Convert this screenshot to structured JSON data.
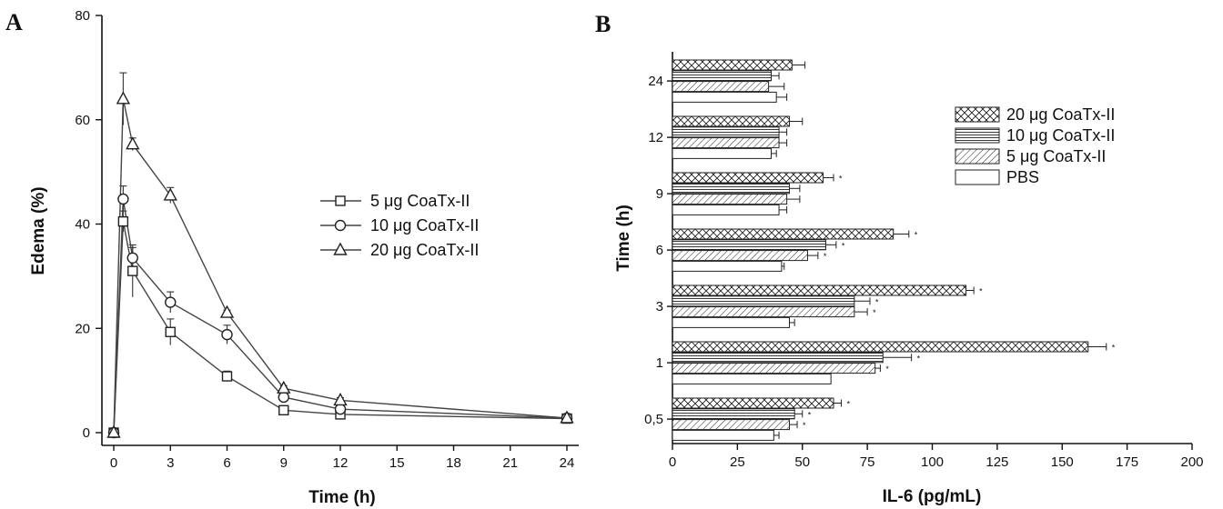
{
  "panel_a_letter": "A",
  "panel_b_letter": "B",
  "chart_data": [
    {
      "type": "line",
      "xlabel": "Time (h)",
      "ylabel": "Edema (%)",
      "x_ticks": [
        "0",
        "3",
        "6",
        "9",
        "12",
        "15",
        "18",
        "21",
        "24"
      ],
      "y_ticks": [
        "0",
        "20",
        "40",
        "60",
        "80"
      ],
      "xlim": [
        0,
        24
      ],
      "ylim": [
        0,
        80
      ],
      "legend_position": "center-right",
      "series": [
        {
          "name": "5 μg CoaTx-II",
          "marker": "square",
          "x": [
            0,
            0.5,
            1,
            3,
            6,
            9,
            12,
            24
          ],
          "y": [
            0,
            40.5,
            31,
            19.3,
            10.8,
            4.3,
            3.5,
            2.7
          ],
          "err": [
            0,
            2,
            5,
            2.5,
            1,
            0.5,
            1,
            0.8
          ]
        },
        {
          "name": "10 μg CoaTx-II",
          "marker": "circle",
          "x": [
            0,
            0.5,
            1,
            3,
            6,
            9,
            12,
            24
          ],
          "y": [
            0,
            44.8,
            33.5,
            25,
            18.8,
            6.8,
            4.5,
            2.8
          ],
          "err": [
            0,
            2.5,
            2,
            2,
            1.8,
            0.5,
            0.5,
            0.5
          ]
        },
        {
          "name": "20 μg CoaTx-II",
          "marker": "triangle",
          "x": [
            0,
            0.5,
            1,
            3,
            6,
            9,
            12,
            24
          ],
          "y": [
            0,
            64,
            55.3,
            45.5,
            23,
            8.5,
            6.2,
            2.8
          ],
          "err": [
            0,
            5,
            1.2,
            1.5,
            0.5,
            0.5,
            0.5,
            0.5
          ]
        }
      ]
    },
    {
      "type": "bar",
      "orientation": "horizontal",
      "xlabel": "IL-6 (pg/mL)",
      "ylabel": "Time (h)",
      "categories": [
        "24",
        "12",
        "9",
        "6",
        "3",
        "1",
        "0,5"
      ],
      "x_ticks": [
        "0",
        "25",
        "50",
        "75",
        "100",
        "125",
        "150",
        "175",
        "200"
      ],
      "xlim": [
        0,
        200
      ],
      "legend_position": "top-right",
      "series": [
        {
          "name": "20 μg CoaTx-II",
          "pattern": "crosshatch",
          "values": [
            46,
            45,
            58,
            85,
            113,
            160,
            62
          ],
          "err": [
            5,
            5,
            4,
            6,
            3,
            7,
            3
          ],
          "significant": [
            false,
            false,
            true,
            true,
            true,
            true,
            true
          ]
        },
        {
          "name": "10 μg CoaTx-II",
          "pattern": "horizontal",
          "values": [
            38,
            41,
            45,
            59,
            70,
            81,
            47
          ],
          "err": [
            3,
            3,
            4,
            4,
            6,
            11,
            3
          ],
          "significant": [
            false,
            false,
            false,
            true,
            true,
            true,
            true
          ]
        },
        {
          "name": "5 μg CoaTx-II",
          "pattern": "diagonal",
          "values": [
            37,
            41,
            44,
            52,
            70,
            78,
            45
          ],
          "err": [
            6,
            3,
            5,
            4,
            5,
            2,
            3
          ],
          "significant": [
            false,
            false,
            false,
            true,
            true,
            true,
            true
          ]
        },
        {
          "name": "PBS",
          "pattern": "empty",
          "values": [
            40,
            38,
            41,
            42,
            45,
            61,
            39
          ],
          "err": [
            4,
            2,
            3,
            1,
            2,
            0,
            2
          ],
          "significant": [
            false,
            false,
            false,
            false,
            false,
            false,
            false
          ]
        }
      ],
      "significance_marker": "*"
    }
  ]
}
